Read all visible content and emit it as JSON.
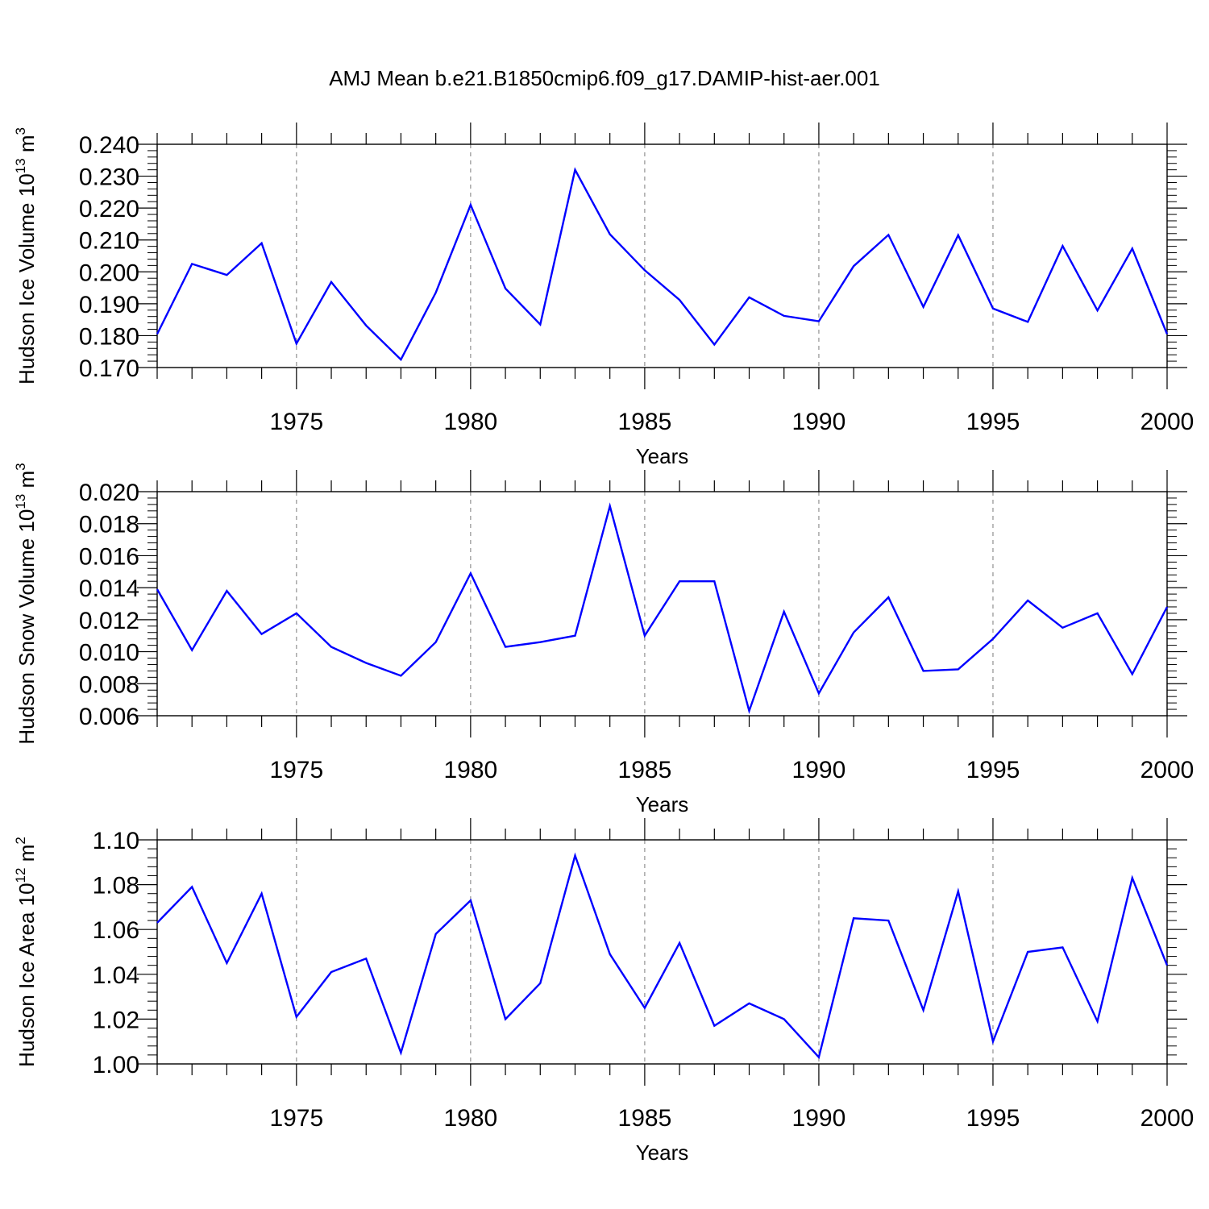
{
  "title": "AMJ Mean b.e21.B1850cmip6.f09_g17.DAMIP-hist-aer.001",
  "colors": {
    "line": "#0000ff",
    "axis": "#000000",
    "grid": "#999999"
  },
  "chart_data": [
    {
      "type": "line",
      "title": "AMJ Mean b.e21.B1850cmip6.f09_g17.DAMIP-hist-aer.001",
      "ylabel": {
        "text": "Hudson Ice Volume 10",
        "exp": "13",
        "unit": " m",
        "unit_exp": "3"
      },
      "xlabel": "Years",
      "xlim": [
        1971,
        2000
      ],
      "ylim": [
        0.17,
        0.24
      ],
      "yticks": [
        "0.170",
        "0.180",
        "0.190",
        "0.200",
        "0.210",
        "0.220",
        "0.230",
        "0.240"
      ],
      "xticks": [
        "1975",
        "1980",
        "1985",
        "1990",
        "1995",
        "2000"
      ],
      "x": [
        1971,
        1972,
        1973,
        1974,
        1975,
        1976,
        1977,
        1978,
        1979,
        1980,
        1981,
        1982,
        1983,
        1984,
        1985,
        1986,
        1987,
        1988,
        1989,
        1990,
        1991,
        1992,
        1993,
        1994,
        1995,
        1996,
        1997,
        1998,
        1999,
        2000
      ],
      "values": [
        0.1805,
        0.2025,
        0.199,
        0.209,
        0.1775,
        0.1968,
        0.1832,
        0.1725,
        0.1935,
        0.221,
        0.1948,
        0.1835,
        0.232,
        0.2118,
        0.2005,
        0.1912,
        0.1772,
        0.192,
        0.1862,
        0.1845,
        0.2018,
        0.2116,
        0.189,
        0.2115,
        0.1885,
        0.1843,
        0.2081,
        0.1879,
        0.2073,
        0.1805
      ]
    },
    {
      "type": "line",
      "ylabel": {
        "text": "Hudson Snow Volume 10",
        "exp": "13",
        "unit": " m",
        "unit_exp": "3"
      },
      "xlabel": "Years",
      "xlim": [
        1971,
        2000
      ],
      "ylim": [
        0.006,
        0.02
      ],
      "yticks": [
        "0.006",
        "0.008",
        "0.010",
        "0.012",
        "0.014",
        "0.016",
        "0.018",
        "0.020"
      ],
      "xticks": [
        "1975",
        "1980",
        "1985",
        "1990",
        "1995",
        "2000"
      ],
      "x": [
        1971,
        1972,
        1973,
        1974,
        1975,
        1976,
        1977,
        1978,
        1979,
        1980,
        1981,
        1982,
        1983,
        1984,
        1985,
        1986,
        1987,
        1988,
        1989,
        1990,
        1991,
        1992,
        1993,
        1994,
        1995,
        1996,
        1997,
        1998,
        1999,
        2000
      ],
      "values": [
        0.0139,
        0.0101,
        0.0138,
        0.0111,
        0.0124,
        0.0103,
        0.0093,
        0.0085,
        0.0106,
        0.0149,
        0.0103,
        0.0106,
        0.011,
        0.0191,
        0.011,
        0.0144,
        0.0144,
        0.0063,
        0.0125,
        0.0074,
        0.0112,
        0.0134,
        0.0088,
        0.0089,
        0.0108,
        0.0132,
        0.0115,
        0.0124,
        0.0086,
        0.0128
      ]
    },
    {
      "type": "line",
      "ylabel": {
        "text": "Hudson Ice Area 10",
        "exp": "12",
        "unit": " m",
        "unit_exp": "2"
      },
      "xlabel": "Years",
      "xlim": [
        1971,
        2000
      ],
      "ylim": [
        1.0,
        1.1
      ],
      "yticks": [
        "1.00",
        "1.02",
        "1.04",
        "1.06",
        "1.08",
        "1.10"
      ],
      "xticks": [
        "1975",
        "1980",
        "1985",
        "1990",
        "1995",
        "2000"
      ],
      "x": [
        1971,
        1972,
        1973,
        1974,
        1975,
        1976,
        1977,
        1978,
        1979,
        1980,
        1981,
        1982,
        1983,
        1984,
        1985,
        1986,
        1987,
        1988,
        1989,
        1990,
        1991,
        1992,
        1993,
        1994,
        1995,
        1996,
        1997,
        1998,
        1999,
        2000
      ],
      "values": [
        1.063,
        1.079,
        1.045,
        1.076,
        1.021,
        1.041,
        1.047,
        1.005,
        1.058,
        1.073,
        1.02,
        1.036,
        1.093,
        1.049,
        1.025,
        1.054,
        1.017,
        1.027,
        1.02,
        1.003,
        1.065,
        1.064,
        1.024,
        1.077,
        1.01,
        1.05,
        1.052,
        1.019,
        1.083,
        1.044
      ]
    }
  ]
}
